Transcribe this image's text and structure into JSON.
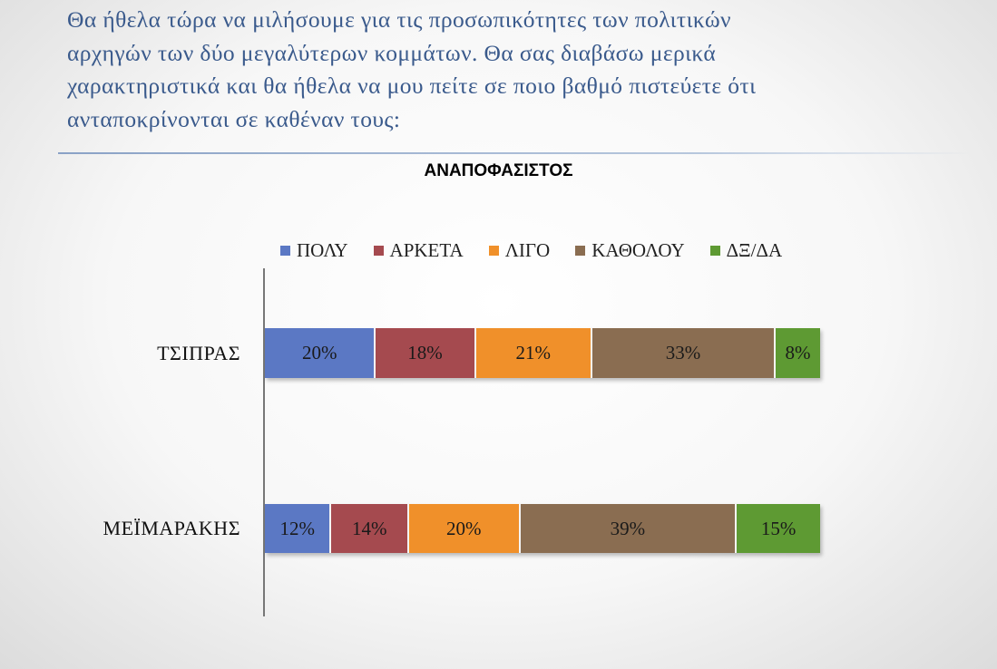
{
  "question": {
    "lines": [
      "Θα ήθελα τώρα να μιλήσουμε για τις προσωπικότητες των πολιτικών",
      "αρχηγών των δύο μεγαλύτερων κομμάτων. Θα σας διαβάσω μερικά",
      "χαρακτηριστικά και θα ήθελα να μου πείτε σε ποιο βαθμό πιστεύετε ότι",
      "ανταποκρίνονται σε καθέναν τους:"
    ]
  },
  "chart_data": {
    "type": "bar",
    "orientation": "horizontal",
    "stacked": true,
    "title": "ΑΝΑΠΟΦΑΣΙΣΤΟΣ",
    "categories": [
      "ΤΣΙΠΡΑΣ",
      "ΜΕΪΜΑΡΑΚΗΣ"
    ],
    "series": [
      {
        "name": "ΠΟΛΥ",
        "color": "#5b78c4",
        "values": [
          20,
          12
        ],
        "labels": [
          "20%",
          "12%"
        ]
      },
      {
        "name": "ΑΡΚΕΤΑ",
        "color": "#a54a4f",
        "values": [
          18,
          14
        ],
        "labels": [
          "18%",
          "14%"
        ]
      },
      {
        "name": "ΛΙΓΟ",
        "color": "#f0902a",
        "values": [
          21,
          20
        ],
        "labels": [
          "21%",
          "20%"
        ]
      },
      {
        "name": "ΚΑΘΟΛΟΥ",
        "color": "#8a6d51",
        "values": [
          33,
          39
        ],
        "labels": [
          "33%",
          "39%"
        ]
      },
      {
        "name": "ΔΞ/ΔΑ",
        "color": "#5e9a33",
        "values": [
          8,
          15
        ],
        "labels": [
          "8%",
          "15%"
        ]
      }
    ],
    "xlim": [
      0,
      100
    ],
    "legend": "top",
    "grid": false
  }
}
